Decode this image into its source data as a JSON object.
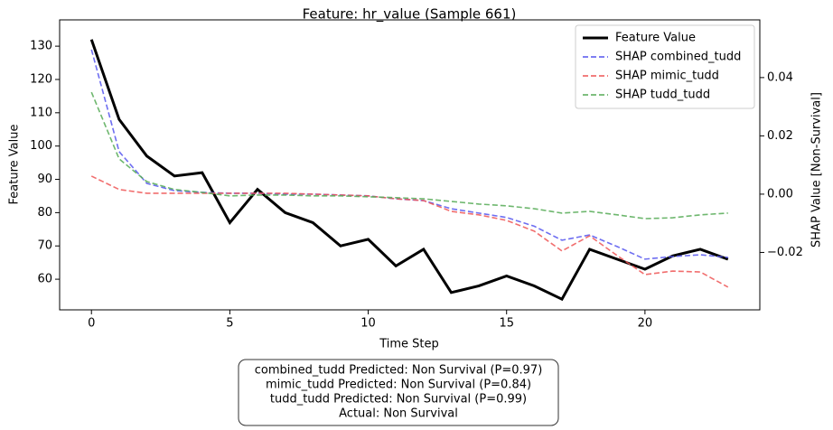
{
  "chart_data": {
    "type": "line",
    "title": "Feature: hr_value (Sample 661)",
    "xlabel": "Time Step",
    "ylabel": "Feature Value",
    "y2label": "SHAP Value [Non-Survival]",
    "x": [
      0,
      1,
      2,
      3,
      4,
      5,
      6,
      7,
      8,
      9,
      10,
      11,
      12,
      13,
      14,
      15,
      16,
      17,
      18,
      19,
      20,
      21,
      22,
      23
    ],
    "xlim": [
      -1.15,
      24.15
    ],
    "xticks": [
      0,
      5,
      10,
      15,
      20
    ],
    "ylim": [
      50.8,
      137.9
    ],
    "yticks": [
      60,
      70,
      80,
      90,
      100,
      110,
      120,
      130
    ],
    "y2lim": [
      -0.0397,
      0.0598
    ],
    "y2ticks": [
      {
        "value": -0.02,
        "label": "−0.02"
      },
      {
        "value": 0,
        "label": "0.00"
      },
      0.02,
      0.04
    ],
    "grid": false,
    "legend": "upper right",
    "series": [
      {
        "name": "Feature Value",
        "color": "#000000",
        "axis": "y",
        "dashed": false,
        "values": [
          132,
          108,
          97,
          91,
          92,
          77,
          87,
          80,
          77,
          70,
          72,
          64,
          69,
          56,
          58,
          61,
          58,
          54,
          69,
          66,
          63,
          67,
          69,
          66
        ]
      },
      {
        "name": "SHAP combined_tudd",
        "color": "#5555ee",
        "axis": "y2",
        "dashed": true,
        "values": [
          0.0496,
          0.0146,
          0.0037,
          0.0012,
          0.0006,
          0.0003,
          0.0003,
          0,
          0,
          -0.0003,
          -0.0006,
          -0.0016,
          -0.0022,
          -0.005,
          -0.0065,
          -0.008,
          -0.011,
          -0.0158,
          -0.014,
          -0.018,
          -0.0223,
          -0.0214,
          -0.0208,
          -0.0217
        ]
      },
      {
        "name": "SHAP mimic_tudd",
        "color": "#ee5555",
        "axis": "y2",
        "dashed": true,
        "values": [
          0.0062,
          0.0016,
          0.0003,
          0.0003,
          0.0003,
          0.0003,
          0.0003,
          0.0003,
          0,
          -0.0003,
          -0.0006,
          -0.0016,
          -0.0022,
          -0.0059,
          -0.0071,
          -0.009,
          -0.0127,
          -0.0195,
          -0.0143,
          -0.0211,
          -0.0276,
          -0.0264,
          -0.0267,
          -0.0319
        ]
      },
      {
        "name": "SHAP tudd_tudd",
        "color": "#55aa55",
        "axis": "y2",
        "dashed": true,
        "values": [
          0.035,
          0.0121,
          0.0043,
          0.0016,
          0.0006,
          -0.0006,
          -0.0003,
          -0.0003,
          -0.0006,
          -0.0006,
          -0.0009,
          -0.0012,
          -0.0016,
          -0.0025,
          -0.0034,
          -0.004,
          -0.005,
          -0.0065,
          -0.0059,
          -0.0071,
          -0.0084,
          -0.0081,
          -0.0071,
          -0.0065
        ]
      }
    ],
    "annotations": [
      "combined_tudd Predicted: Non Survival (P=0.97)",
      "mimic_tudd Predicted: Non Survival (P=0.84)",
      "tudd_tudd Predicted: Non Survival (P=0.99)",
      "Actual: Non Survival"
    ]
  }
}
